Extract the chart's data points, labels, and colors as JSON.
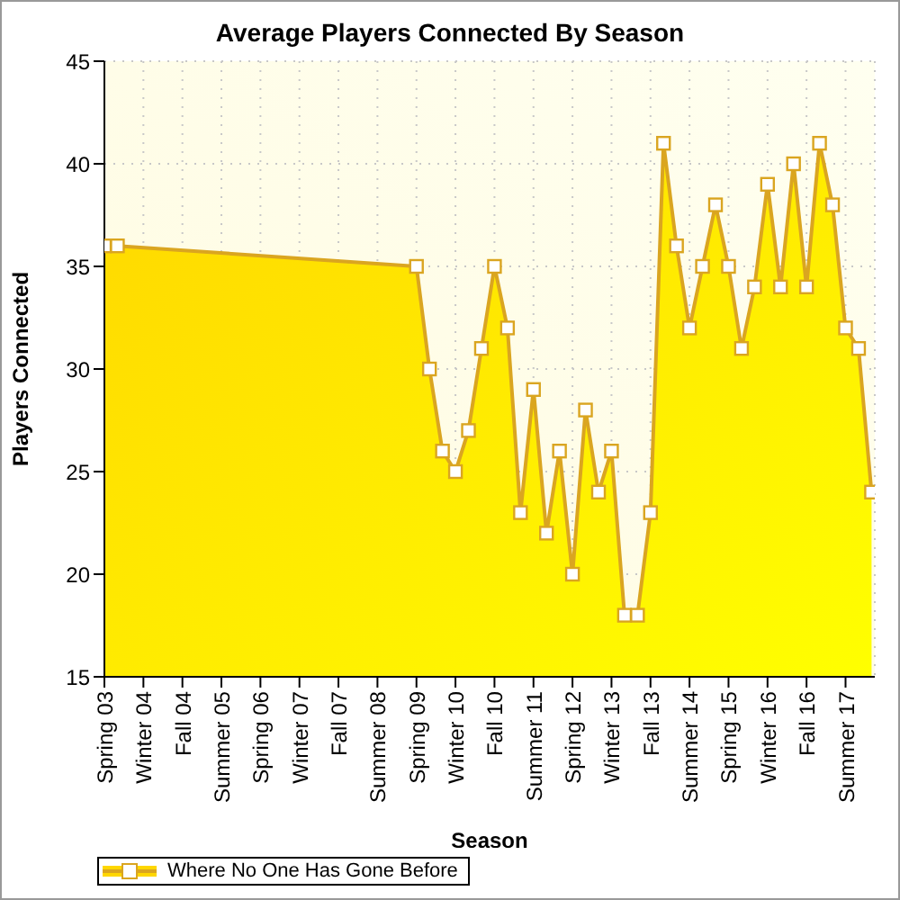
{
  "chart_data": {
    "type": "area",
    "title": "Average Players Connected By Season",
    "xlabel": "Season",
    "ylabel": "Players Connected",
    "categories": [
      "Spring 03",
      null,
      null,
      "Winter 04",
      null,
      null,
      "Fall 04",
      null,
      null,
      "Summer 05",
      null,
      null,
      "Spring 06",
      null,
      null,
      "Winter 07",
      null,
      null,
      "Fall 07",
      null,
      null,
      "Summer 08",
      null,
      null,
      "Spring 09",
      null,
      null,
      "Winter 10",
      null,
      null,
      "Fall 10",
      null,
      null,
      "Summer 11",
      null,
      null,
      "Spring 12",
      null,
      null,
      "Winter 13",
      null,
      null,
      "Fall 13",
      null,
      null,
      "Summer 14",
      null,
      null,
      "Spring 15",
      null,
      null,
      "Winter 16",
      null,
      null,
      "Fall 16",
      null,
      null,
      "Summer 17",
      null,
      null
    ],
    "series": [
      {
        "name": "Where No One Has Gone Before",
        "color": "#daa520",
        "values": [
          36,
          36,
          null,
          null,
          null,
          null,
          null,
          null,
          null,
          null,
          null,
          null,
          null,
          null,
          null,
          null,
          null,
          null,
          null,
          null,
          null,
          null,
          null,
          null,
          35,
          30,
          26,
          25,
          27,
          31,
          35,
          32,
          23,
          29,
          22,
          26,
          20,
          28,
          24,
          26,
          18,
          18,
          23,
          41,
          36,
          32,
          35,
          38,
          35,
          31,
          34,
          39,
          34,
          40,
          34,
          41,
          38,
          32,
          31,
          24
        ]
      }
    ],
    "ylim": [
      15,
      45
    ],
    "yticks": [
      15,
      20,
      25,
      30,
      35,
      40,
      45
    ],
    "grid": true,
    "legend": "bottom left",
    "marker": "square",
    "line_style": "solid"
  }
}
